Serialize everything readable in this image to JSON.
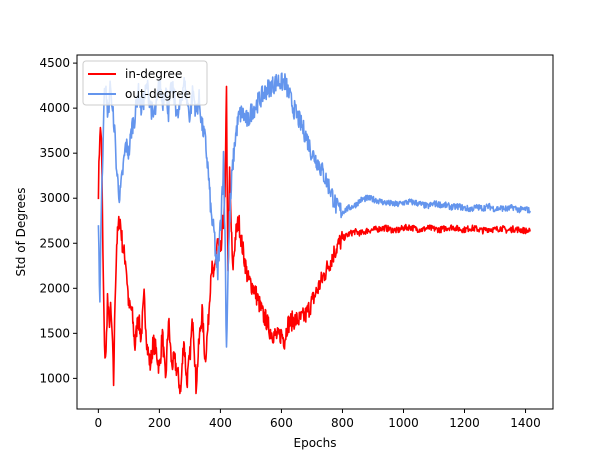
{
  "chart_data": {
    "type": "line",
    "title": "",
    "xlabel": "Epochs",
    "ylabel": "Std of Degrees",
    "xlim": [
      -70,
      1490
    ],
    "ylim": [
      660,
      4590
    ],
    "xticks": [
      0,
      200,
      400,
      600,
      800,
      1000,
      1200,
      1400
    ],
    "yticks": [
      1000,
      1500,
      2000,
      2500,
      3000,
      3500,
      4000,
      4500
    ],
    "grid": false,
    "legend_position": "top-left",
    "series": [
      {
        "name": "in-degree",
        "color": "#ff0000",
        "x": [
          0,
          5,
          10,
          15,
          20,
          25,
          30,
          35,
          40,
          45,
          50,
          55,
          60,
          70,
          80,
          90,
          100,
          110,
          120,
          130,
          140,
          150,
          160,
          170,
          180,
          190,
          200,
          210,
          220,
          230,
          240,
          250,
          260,
          270,
          280,
          290,
          300,
          310,
          320,
          330,
          340,
          350,
          360,
          370,
          380,
          390,
          400,
          410,
          415,
          420,
          425,
          430,
          440,
          450,
          460,
          470,
          480,
          490,
          500,
          510,
          520,
          530,
          540,
          550,
          560,
          570,
          580,
          590,
          600,
          610,
          620,
          640,
          660,
          680,
          700,
          720,
          740,
          760,
          780,
          800,
          820,
          840,
          860,
          880,
          900,
          920,
          940,
          960,
          980,
          1000,
          1020,
          1040,
          1060,
          1080,
          1100,
          1120,
          1140,
          1160,
          1180,
          1200,
          1220,
          1240,
          1260,
          1280,
          1300,
          1320,
          1340,
          1360,
          1380,
          1400,
          1415
        ],
        "values": [
          3100,
          3750,
          3700,
          2400,
          1300,
          1250,
          1900,
          1600,
          1750,
          1500,
          950,
          1900,
          2500,
          2800,
          2450,
          2300,
          1800,
          1750,
          1350,
          1700,
          1450,
          1900,
          1350,
          1150,
          1400,
          1300,
          1100,
          1500,
          950,
          1650,
          1150,
          1200,
          1050,
          850,
          1450,
          950,
          1250,
          1700,
          900,
          1400,
          1750,
          1200,
          1600,
          2250,
          2100,
          2550,
          2300,
          2800,
          2950,
          4150,
          2100,
          3250,
          2200,
          2600,
          2750,
          2500,
          2300,
          2100,
          2050,
          2000,
          1900,
          1800,
          1700,
          1650,
          1550,
          1500,
          1480,
          1450,
          1500,
          1420,
          1600,
          1650,
          1650,
          1700,
          1850,
          2000,
          2150,
          2300,
          2450,
          2550,
          2600,
          2630,
          2610,
          2640,
          2650,
          2660,
          2670,
          2650,
          2640,
          2670,
          2680,
          2660,
          2650,
          2670,
          2660,
          2650,
          2670,
          2680,
          2660,
          2650,
          2670,
          2660,
          2640,
          2660,
          2650,
          2670,
          2640,
          2660,
          2650,
          2640,
          2630
        ]
      },
      {
        "name": "out-degree",
        "color": "#6495ed",
        "x": [
          0,
          5,
          10,
          15,
          20,
          25,
          30,
          35,
          40,
          45,
          50,
          55,
          60,
          70,
          80,
          90,
          100,
          110,
          120,
          130,
          140,
          150,
          160,
          170,
          180,
          190,
          200,
          210,
          220,
          230,
          240,
          250,
          260,
          270,
          280,
          290,
          300,
          310,
          320,
          330,
          340,
          350,
          360,
          370,
          380,
          390,
          400,
          410,
          415,
          420,
          425,
          430,
          440,
          450,
          460,
          470,
          480,
          490,
          500,
          510,
          520,
          530,
          540,
          550,
          560,
          570,
          580,
          590,
          600,
          610,
          620,
          640,
          660,
          680,
          700,
          720,
          740,
          760,
          780,
          800,
          820,
          840,
          860,
          880,
          900,
          920,
          940,
          960,
          980,
          1000,
          1020,
          1040,
          1060,
          1080,
          1100,
          1120,
          1140,
          1160,
          1180,
          1200,
          1220,
          1240,
          1260,
          1280,
          1300,
          1320,
          1340,
          1360,
          1380,
          1400,
          1415
        ],
        "values": [
          2600,
          1900,
          3000,
          3500,
          4250,
          4300,
          3850,
          4050,
          4300,
          3950,
          3900,
          3650,
          3300,
          3000,
          3300,
          3600,
          3500,
          3800,
          3900,
          4200,
          4000,
          4100,
          4250,
          4050,
          3900,
          4000,
          4300,
          4050,
          4250,
          3950,
          4250,
          4100,
          3900,
          4050,
          4300,
          4100,
          3900,
          4200,
          3950,
          4100,
          3800,
          3650,
          3300,
          2800,
          2600,
          2100,
          2700,
          3400,
          2600,
          1330,
          2200,
          2750,
          3350,
          3700,
          3900,
          3950,
          3900,
          3850,
          3950,
          4000,
          4050,
          4100,
          4150,
          4200,
          4230,
          4250,
          4280,
          4300,
          4280,
          4300,
          4200,
          4000,
          3850,
          3700,
          3500,
          3400,
          3250,
          3100,
          2900,
          2850,
          2890,
          2920,
          2980,
          3000,
          2990,
          2970,
          2950,
          2940,
          2930,
          2950,
          2960,
          2950,
          2930,
          2910,
          2940,
          2930,
          2920,
          2900,
          2910,
          2890,
          2880,
          2900,
          2890,
          2910,
          2880,
          2890,
          2880,
          2900,
          2870,
          2880,
          2860
        ]
      }
    ]
  }
}
